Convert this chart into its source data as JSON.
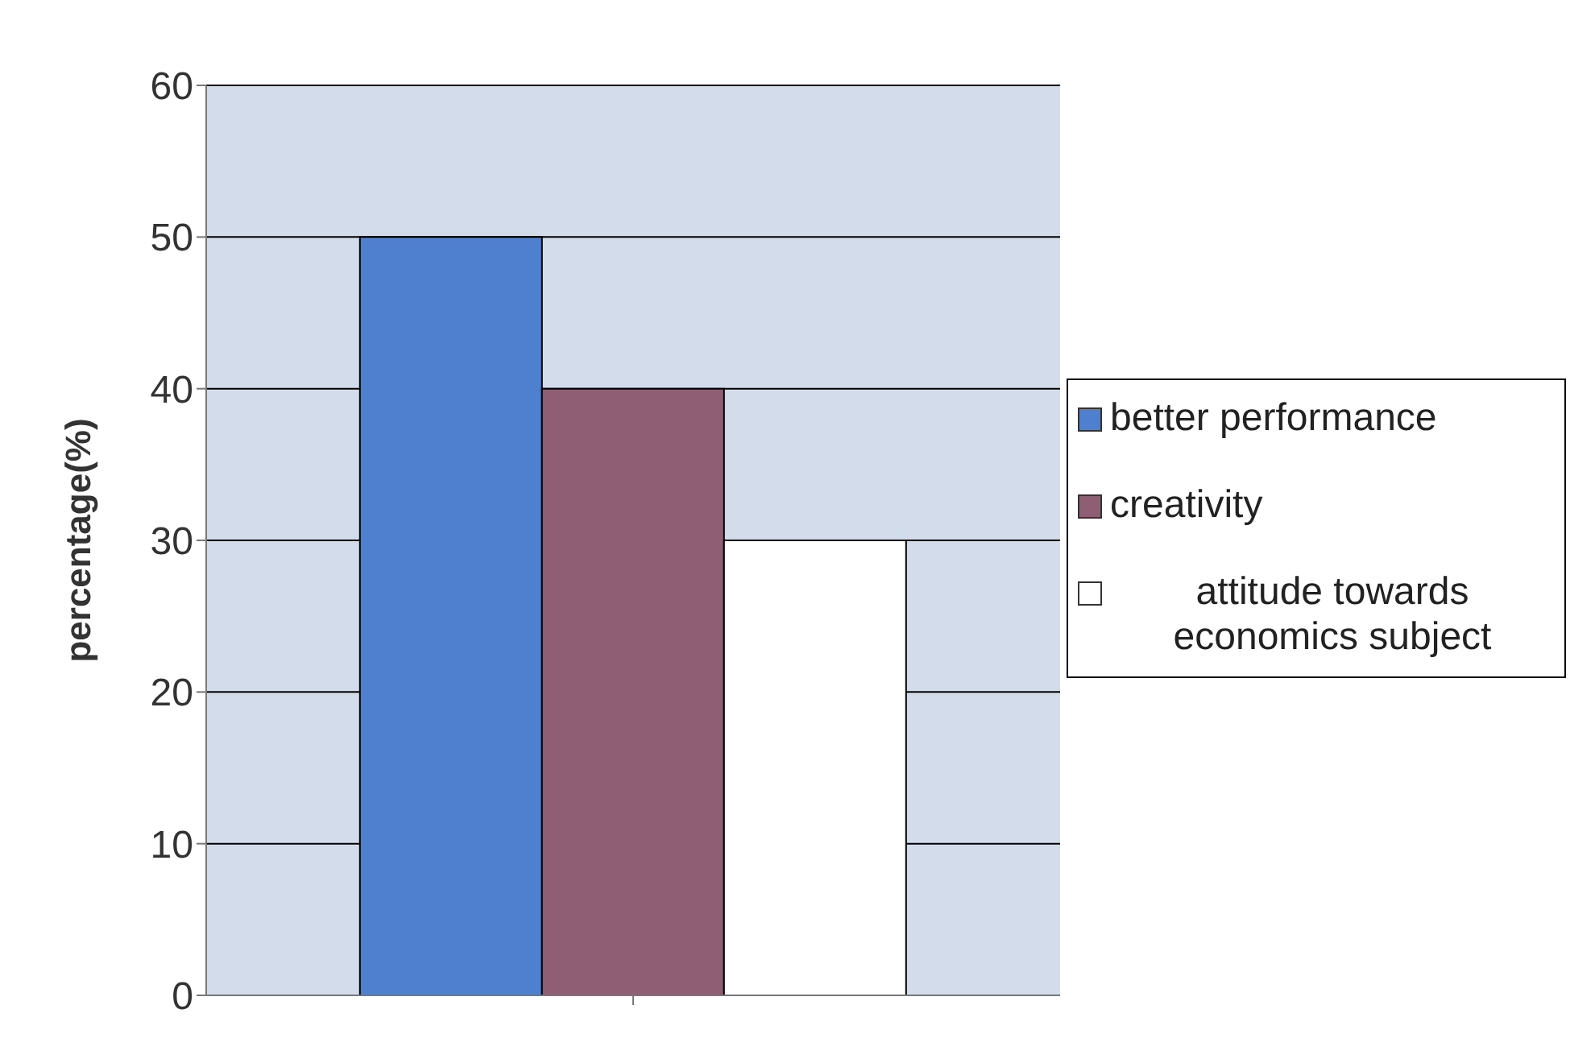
{
  "chart_data": {
    "type": "bar",
    "ylabel": "percentage(%)",
    "categories": [
      null
    ],
    "series": [
      {
        "name": "better performance",
        "color": "#4f7fcf",
        "values": [
          50
        ]
      },
      {
        "name": "creativity",
        "color": "#8e5f74",
        "values": [
          40
        ]
      },
      {
        "name": "attitude towards economics subject",
        "color": "#ffffff",
        "values": [
          30
        ]
      }
    ],
    "ylim": [
      0,
      60
    ],
    "yticks": [
      0,
      10,
      20,
      30,
      40,
      50,
      60
    ],
    "grid": "y",
    "legend": "right"
  }
}
